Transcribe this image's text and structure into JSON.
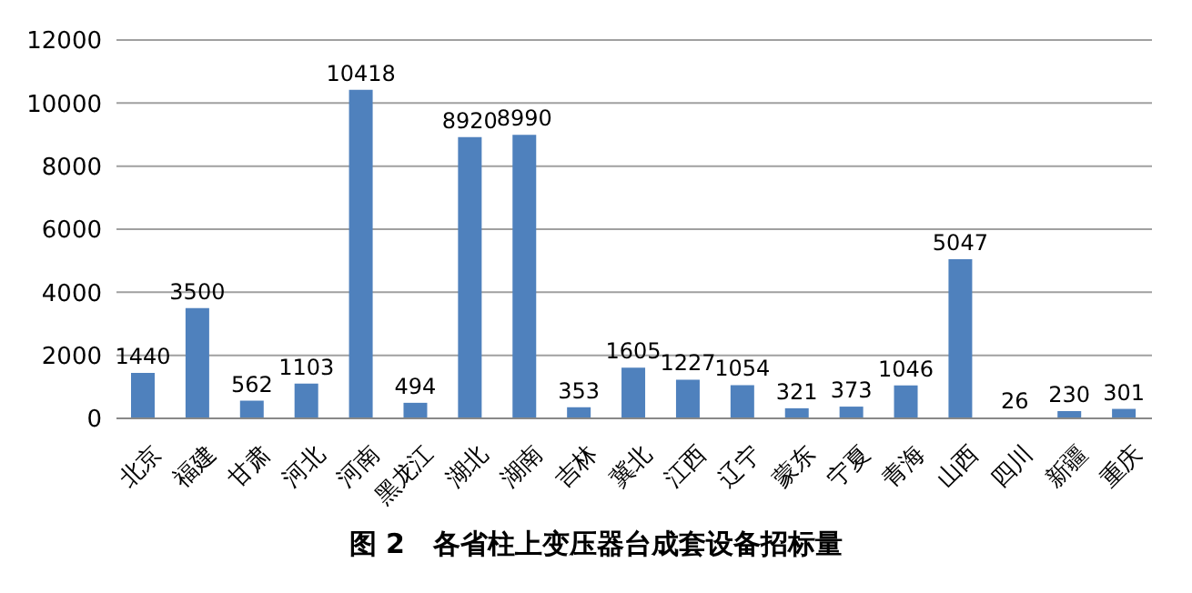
{
  "chart_data": {
    "type": "bar",
    "title": "图 2   各省柱上变压器台成套设备招标量",
    "categories": [
      "北京",
      "福建",
      "甘肃",
      "河北",
      "河南",
      "黑龙江",
      "湖北",
      "湖南",
      "吉林",
      "冀北",
      "江西",
      "辽宁",
      "蒙东",
      "宁夏",
      "青海",
      "山西",
      "四川",
      "新疆",
      "重庆"
    ],
    "values": [
      1440,
      3500,
      562,
      1103,
      10418,
      494,
      8920,
      8990,
      353,
      1605,
      1227,
      1054,
      321,
      373,
      1046,
      5047,
      26,
      230,
      301
    ],
    "color": "#4f81bd",
    "ylim": [
      0,
      12000
    ],
    "yticks": [
      0,
      2000,
      4000,
      6000,
      8000,
      10000,
      12000
    ],
    "grid": "y",
    "data_labels": true
  }
}
